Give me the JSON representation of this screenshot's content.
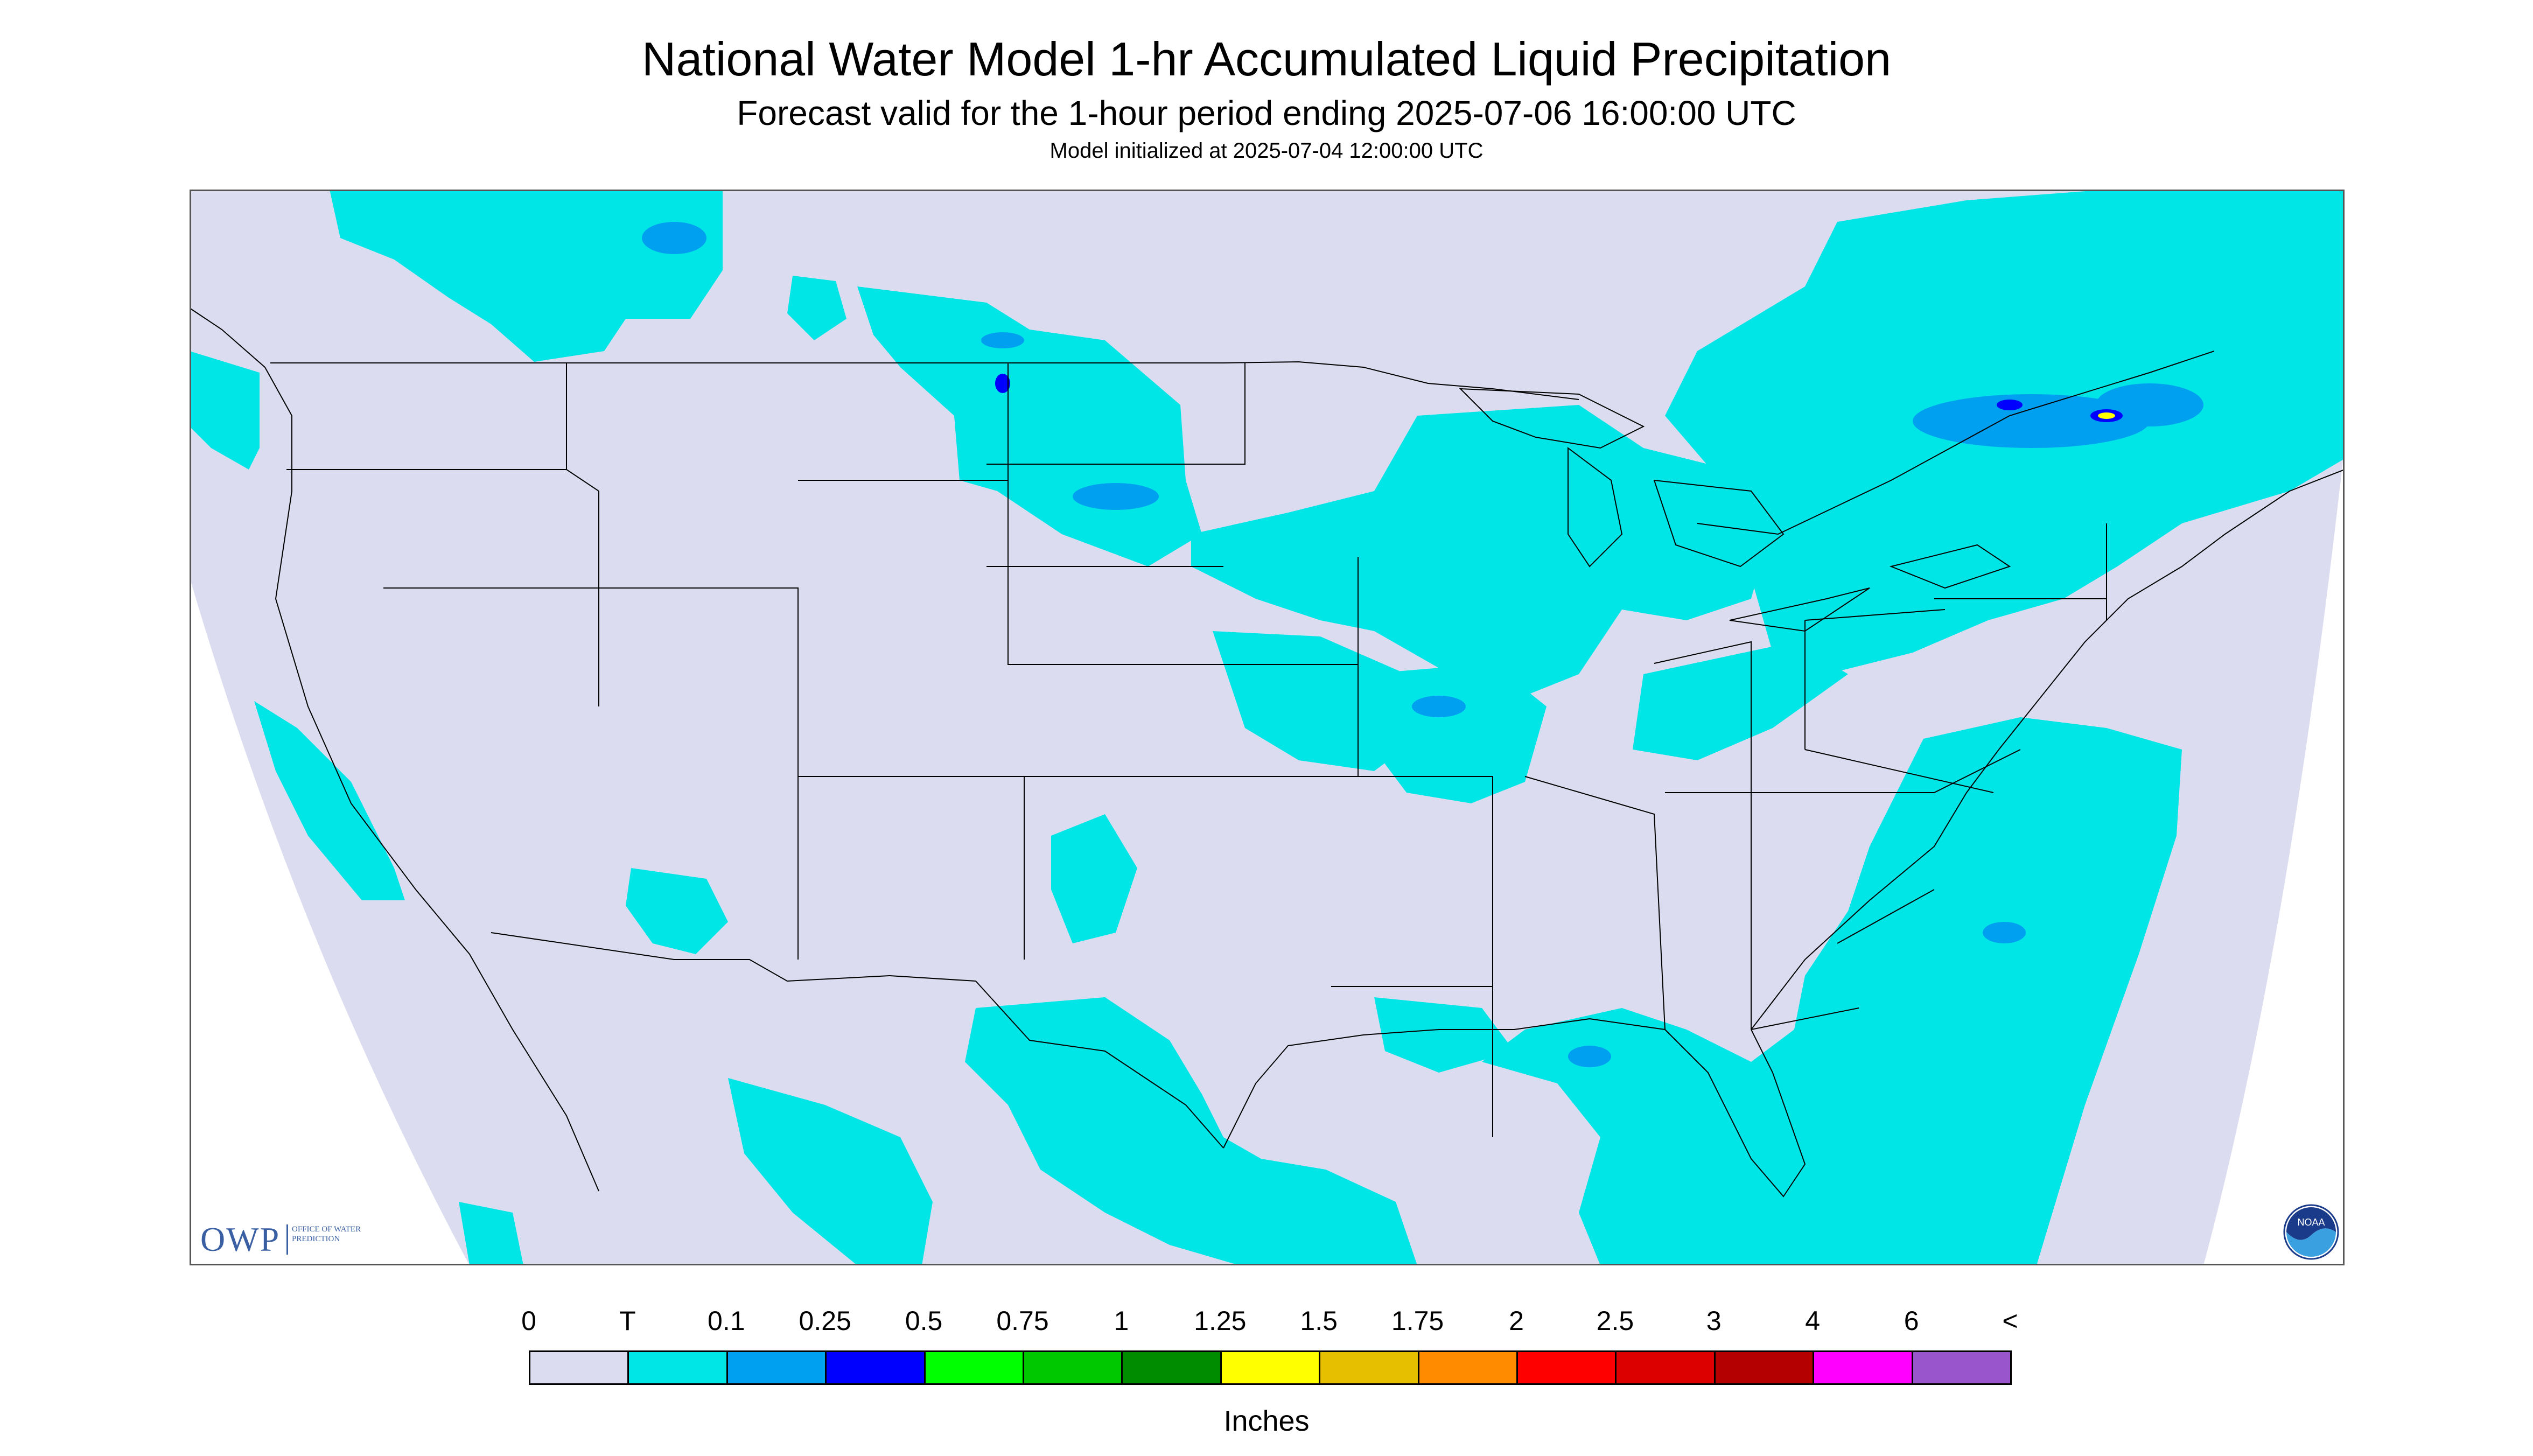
{
  "header": {
    "title": "National Water Model 1-hr Accumulated Liquid Precipitation",
    "subtitle": "Forecast valid for the 1-hour period ending 2025-07-06 16:00:00 UTC",
    "init": "Model initialized at 2025-07-04 12:00:00 UTC"
  },
  "map": {
    "region": "CONUS",
    "background_color": "#ffffff",
    "domain_color": "#dcdcf0",
    "boundary_color": "#000000"
  },
  "logos": {
    "owp": {
      "mark": "OWP",
      "text": "Office of Water Prediction"
    },
    "noaa": {
      "text": "NOAA"
    }
  },
  "legend": {
    "labels": [
      "0",
      "T",
      "0.1",
      "0.25",
      "0.5",
      "0.75",
      "1",
      "1.25",
      "1.5",
      "1.75",
      "2",
      "2.5",
      "3",
      "4",
      "6",
      "<"
    ],
    "colors": [
      "#dcdcf0",
      "#00e5e5",
      "#00a0f0",
      "#0000ff",
      "#00ff00",
      "#00c800",
      "#008c00",
      "#ffff00",
      "#e6c000",
      "#ff8c00",
      "#ff0000",
      "#dc0000",
      "#b40000",
      "#ff00ff",
      "#9955cc"
    ],
    "units": "Inches"
  }
}
